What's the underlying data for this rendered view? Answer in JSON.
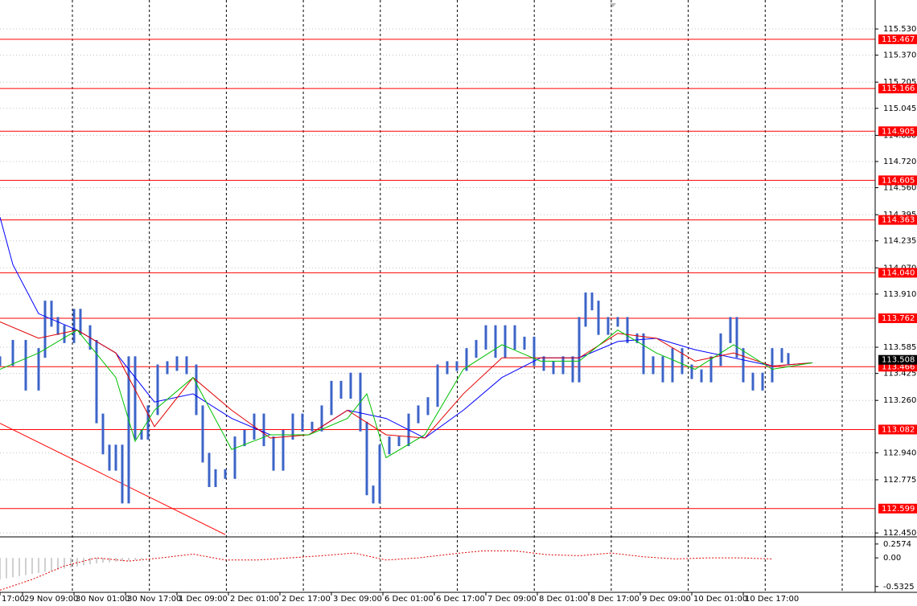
{
  "chart_data": {
    "type": "ohlc",
    "xlim": [
      0,
      272
    ],
    "ylim": [
      112.426,
      115.707
    ],
    "xticks": [
      {
        "value": 0,
        "label": "17:00"
      },
      {
        "value": 7,
        "label": "29 Nov 09:00"
      },
      {
        "value": 23,
        "label": "30 Nov 01:00"
      },
      {
        "value": 39,
        "label": "30 Nov 17:00"
      },
      {
        "value": 55,
        "label": "1 Dec 09:00"
      },
      {
        "value": 71,
        "label": "2 Dec 01:00"
      },
      {
        "value": 87,
        "label": "2 Dec 17:00"
      },
      {
        "value": 103,
        "label": "3 Dec 09:00"
      },
      {
        "value": 119,
        "label": "6 Dec 01:00"
      },
      {
        "value": 135,
        "label": "6 Dec 17:00"
      },
      {
        "value": 151,
        "label": "7 Dec 09:00"
      },
      {
        "value": 167,
        "label": "8 Dec 01:00"
      },
      {
        "value": 183,
        "label": "8 Dec 17:00"
      },
      {
        "value": 199,
        "label": "9 Dec 09:00"
      },
      {
        "value": 215,
        "label": "10 Dec 01:00"
      },
      {
        "value": 231,
        "label": "10 Dec 17:00"
      }
    ],
    "yticks": [
      {
        "value": 115.53,
        "label": "115.530"
      },
      {
        "value": 115.37,
        "label": "115.370"
      },
      115.205,
      115.045,
      {
        "value": 114.88,
        "label": "114.880"
      },
      {
        "value": 114.72,
        "label": "114.720"
      },
      {
        "value": 114.56,
        "label": "114.560"
      },
      114.395,
      114.235,
      {
        "value": 114.07,
        "label": "114.070"
      },
      {
        "value": 113.91,
        "label": "113.910"
      },
      113.585,
      113.425,
      {
        "value": 113.26,
        "label": "113.260"
      },
      {
        "value": 112.94,
        "label": "112.940"
      },
      112.775,
      {
        "value": 112.45,
        "label": "112.450"
      }
    ],
    "grid": true,
    "price": {
      "color": "#3c64c8",
      "x": [
        0,
        4,
        8,
        12,
        14,
        16,
        18,
        20,
        23,
        25,
        28,
        30,
        32,
        34,
        36,
        38,
        40,
        42,
        44,
        46,
        49,
        52,
        55,
        58,
        61,
        63,
        65,
        67,
        70,
        73,
        76,
        79,
        82,
        85,
        88,
        91,
        94,
        97,
        100,
        103,
        106,
        109,
        112,
        114,
        116,
        118,
        121,
        124,
        127,
        130,
        133,
        136,
        139,
        142,
        145,
        148,
        151,
        154,
        157,
        160,
        163,
        166,
        169,
        172,
        175,
        178,
        180,
        182,
        184,
        186,
        189,
        192,
        195,
        198,
        200,
        203,
        206,
        209,
        212,
        215,
        218,
        221,
        224,
        227,
        229,
        231,
        234,
        237,
        240,
        243,
        245
      ],
      "values": [
        113.5,
        113.6,
        113.35,
        113.55,
        113.84,
        113.74,
        113.69,
        113.64,
        113.79,
        113.69,
        113.6,
        113.15,
        112.96,
        112.86,
        112.96,
        112.66,
        113.5,
        113.05,
        113.05,
        113.2,
        113.45,
        113.47,
        113.5,
        113.45,
        113.2,
        112.91,
        112.76,
        112.81,
        112.81,
        113.01,
        113.05,
        113.15,
        113.01,
        112.86,
        113.05,
        113.15,
        113.1,
        113.1,
        113.2,
        113.35,
        113.3,
        113.4,
        113.1,
        112.71,
        112.66,
        112.96,
        113.01,
        113.01,
        113.15,
        113.2,
        113.25,
        113.45,
        113.47,
        113.47,
        113.55,
        113.6,
        113.69,
        113.55,
        113.69,
        113.6,
        113.62,
        113.5,
        113.47,
        113.45,
        113.5,
        113.4,
        113.74,
        113.89,
        113.84,
        113.69,
        113.74,
        113.74,
        113.64,
        113.64,
        113.45,
        113.5,
        113.4,
        113.55,
        113.45,
        113.42,
        113.4,
        113.5,
        113.64,
        113.74,
        113.55,
        113.4,
        113.35,
        113.4,
        113.55,
        113.52,
        113.51
      ]
    },
    "series": [
      {
        "color": "#0000ff",
        "x": [
          0,
          4,
          12,
          24,
          36,
          48,
          60,
          72,
          84,
          96,
          108,
          120,
          132,
          144,
          156,
          168,
          180,
          192,
          204,
          216,
          228,
          240,
          252.5
        ],
        "values": [
          114.38,
          114.09,
          113.79,
          113.69,
          113.55,
          113.25,
          113.3,
          113.15,
          113.05,
          113.05,
          113.2,
          113.15,
          113.03,
          113.2,
          113.4,
          113.52,
          113.52,
          113.62,
          113.64,
          113.57,
          113.52,
          113.47,
          113.49
        ]
      },
      {
        "color": "#e00000",
        "x": [
          0,
          12,
          24,
          36,
          48,
          60,
          72,
          84,
          96,
          108,
          120,
          132,
          144,
          156,
          168,
          180,
          192,
          204,
          216,
          228,
          240,
          252.5
        ],
        "values": [
          113.74,
          113.64,
          113.69,
          113.55,
          113.1,
          113.4,
          113.2,
          113.03,
          113.05,
          113.2,
          113.05,
          113.03,
          113.3,
          113.52,
          113.52,
          113.52,
          113.67,
          113.64,
          113.5,
          113.55,
          113.47,
          113.49
        ]
      },
      {
        "color": "#00c000",
        "x": [
          0,
          12,
          24,
          36,
          42,
          48,
          60,
          72,
          84,
          96,
          108,
          114,
          120,
          132,
          144,
          156,
          168,
          180,
          192,
          204,
          216,
          228,
          240,
          252.5
        ],
        "values": [
          113.45,
          113.55,
          113.69,
          113.4,
          113.01,
          113.2,
          113.4,
          112.96,
          113.05,
          113.05,
          113.15,
          113.3,
          112.91,
          113.05,
          113.45,
          113.6,
          113.5,
          113.5,
          113.69,
          113.55,
          113.45,
          113.6,
          113.45,
          113.49
        ]
      }
    ],
    "levels": [
      115.467,
      115.166,
      114.905,
      114.605,
      114.363,
      {
        "value": 114.04,
        "label": "114.040"
      },
      113.762,
      113.466,
      113.082,
      112.599
    ],
    "level_color": "#ff0000",
    "last_price": 113.508,
    "trendline": {
      "color": "#ff0000",
      "x": [
        0,
        70
      ],
      "values": [
        113.12,
        112.44
      ]
    },
    "oscillator": {
      "ylim": [
        -0.64,
        0.36
      ],
      "yticks": [
        0.2574,
        {
          "value": 0,
          "label": "0.00"
        },
        -0.5325
      ],
      "histogram": {
        "color": "#a0a0a0",
        "x": [
          0,
          2,
          4,
          6,
          8,
          10,
          12,
          14,
          16,
          18,
          20,
          22,
          24,
          26,
          28,
          30,
          32,
          34,
          36,
          38,
          40,
          42,
          44
        ],
        "values": [
          -0.4,
          -0.38,
          -0.36,
          -0.34,
          -0.32,
          -0.3,
          -0.28,
          -0.26,
          -0.24,
          -0.22,
          -0.2,
          -0.18,
          -0.16,
          -0.14,
          -0.12,
          -0.1,
          -0.09,
          -0.08,
          -0.07,
          -0.06,
          -0.05,
          -0.04,
          -0.03
        ]
      },
      "signal": {
        "color": "#e00000",
        "x": [
          0,
          10,
          20,
          30,
          40,
          50,
          60,
          70,
          80,
          90,
          100,
          110,
          120,
          130,
          140,
          150,
          160,
          170,
          180,
          190,
          200,
          210,
          220,
          230,
          240
        ],
        "values": [
          -0.6,
          -0.4,
          -0.15,
          0.0,
          -0.06,
          0.0,
          0.07,
          -0.04,
          -0.04,
          0.0,
          0.04,
          0.09,
          -0.04,
          0.0,
          0.07,
          0.13,
          0.13,
          0.06,
          0.04,
          0.09,
          0.02,
          -0.02,
          0.0,
          0.0,
          -0.02
        ]
      }
    }
  }
}
